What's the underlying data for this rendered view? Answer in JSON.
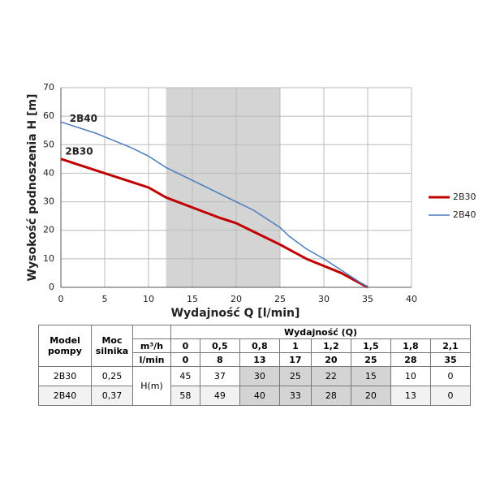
{
  "chart_data": {
    "type": "line",
    "xlabel": "Wydajność Q [l/min]",
    "ylabel": "Wysokość podnoszenia H [m]",
    "xlim": [
      0,
      40
    ],
    "xticks": [
      0,
      5,
      10,
      15,
      20,
      25,
      30,
      35,
      40
    ],
    "ylim": [
      0,
      70
    ],
    "yticks": [
      0,
      10,
      20,
      30,
      40,
      50,
      60,
      70
    ],
    "grid": true,
    "highlight_x": [
      12,
      25
    ],
    "highlight_color": "#d4d4d4",
    "legend": "right",
    "series": [
      {
        "name": "2B30",
        "color": "#c00000",
        "width": 3,
        "x": [
          0,
          4,
          8,
          10,
          12,
          15,
          18,
          20,
          22,
          25,
          28,
          30,
          32,
          35
        ],
        "values": [
          45,
          41,
          37,
          35,
          31.5,
          28,
          24.5,
          22.5,
          19.5,
          15,
          10,
          7.5,
          5,
          0
        ]
      },
      {
        "name": "2B40",
        "color": "#4a7ebb",
        "width": 1.5,
        "x": [
          0,
          4,
          8,
          10,
          12,
          15,
          18,
          20,
          22,
          25,
          26,
          28,
          30,
          35
        ],
        "values": [
          58,
          54,
          49,
          46,
          42,
          37.5,
          33,
          30,
          27,
          21,
          18,
          13.5,
          10,
          0
        ]
      }
    ],
    "annotations": [
      {
        "text": "2B40",
        "x": 1,
        "y": 59
      },
      {
        "text": "2B30",
        "x": 0.5,
        "y": 47.5
      }
    ]
  },
  "table": {
    "headers": {
      "model": "Model pompy",
      "power": "Moc silnika",
      "flow": "Wydajność (Q)",
      "head": "H(m)"
    },
    "units": [
      {
        "unit": "m³/h",
        "values": [
          "0",
          "0,5",
          "0,8",
          "1",
          "1,2",
          "1,5",
          "1,8",
          "2,1"
        ]
      },
      {
        "unit": "l/min",
        "values": [
          "0",
          "8",
          "13",
          "17",
          "20",
          "25",
          "28",
          "35"
        ]
      }
    ],
    "rows": [
      {
        "model": "2B30",
        "power": "0,25",
        "values": [
          "45",
          "37",
          "30",
          "25",
          "22",
          "15",
          "10",
          "0"
        ]
      },
      {
        "model": "2B40",
        "power": "0,37",
        "values": [
          "58",
          "49",
          "40",
          "33",
          "28",
          "20",
          "13",
          "0"
        ]
      }
    ],
    "highlight": [
      2,
      3,
      4,
      5
    ]
  }
}
